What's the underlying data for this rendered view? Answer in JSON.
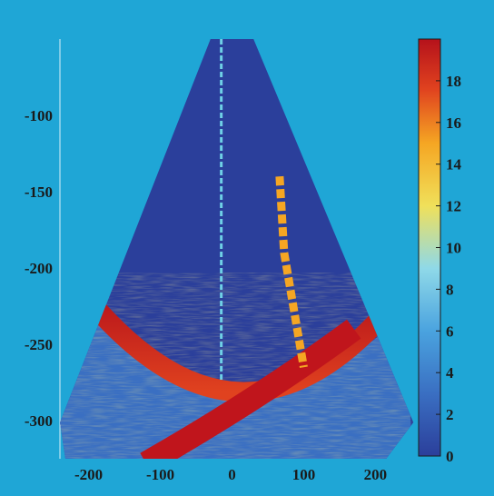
{
  "colors": {
    "background": "#1fa6d6",
    "colormap": [
      "#2b3f9b",
      "#3a6fc2",
      "#4aa3df",
      "#6fd0e6",
      "#f0e05a",
      "#f5a623",
      "#e0421f",
      "#b5121b"
    ]
  },
  "chart_data": {
    "type": "heatmap",
    "title": "",
    "xlabel": "",
    "ylabel": "",
    "xlim": [
      -240,
      240
    ],
    "ylim": [
      -325,
      -50
    ],
    "x_ticks": [
      -200,
      -100,
      0,
      100,
      200
    ],
    "x_tick_labels": [
      "-200",
      "-100",
      "0",
      "100",
      "200"
    ],
    "y_ticks": [
      -100,
      -150,
      -200,
      -250,
      -300
    ],
    "y_tick_labels": [
      "-100",
      "-150",
      "-200",
      "-250",
      "-300"
    ],
    "colorbar": {
      "range": [
        0,
        20
      ],
      "ticks": [
        0,
        2,
        4,
        6,
        8,
        10,
        12,
        14,
        16,
        18
      ],
      "tick_labels": [
        "0",
        "2",
        "4",
        "6",
        "8",
        "10",
        "12",
        "14",
        "16",
        "18"
      ]
    },
    "sector": {
      "apex_top_x": [
        -30,
        30
      ],
      "top_y": -50,
      "left_edge_bottom_x": -240,
      "right_edge_bottom_x": 215,
      "description_values": "fan-shaped sonar image; background value about 1"
    },
    "features": [
      {
        "name": "vertical streak",
        "x": -15,
        "y_range": [
          -50,
          -275
        ],
        "value": 6
      },
      {
        "name": "oblique streak",
        "x_range": [
          60,
          100
        ],
        "y_range": [
          -140,
          -265
        ],
        "value": 14
      },
      {
        "name": "curved bottom arc",
        "x_range": [
          -210,
          190
        ],
        "y_min": -280,
        "value": 18
      },
      {
        "name": "diagonal reflection band",
        "x_from": -120,
        "x_to": 170,
        "y_from": -325,
        "y_to": -240,
        "value": 18
      }
    ]
  }
}
